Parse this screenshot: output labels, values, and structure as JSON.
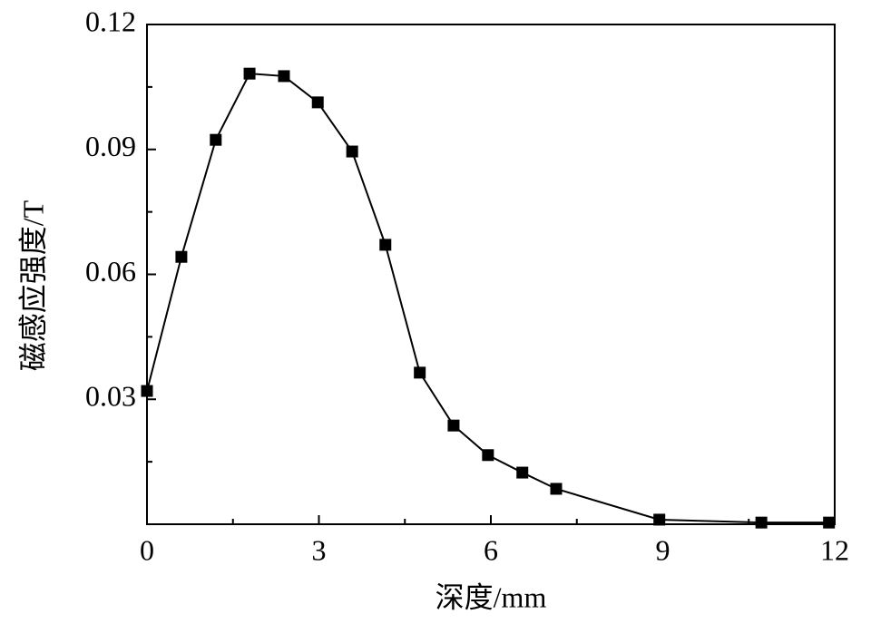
{
  "chart_data": {
    "type": "line",
    "x_label": "深度/mm",
    "y_label": "磁感应强度/T",
    "x": [
      0,
      0.6,
      1.2,
      1.79,
      2.39,
      2.98,
      3.58,
      4.16,
      4.76,
      5.35,
      5.95,
      6.55,
      7.14,
      8.94,
      10.72,
      11.9
    ],
    "series": [
      {
        "name": null,
        "color": "#000000",
        "values": [
          0.032,
          0.0642,
          0.0923,
          0.1082,
          0.1076,
          0.1013,
          0.0895,
          0.0671,
          0.0364,
          0.0237,
          0.0166,
          0.0124,
          0.0085,
          0.0011,
          0.0004,
          0.0004
        ]
      }
    ],
    "xlim": [
      0,
      12
    ],
    "xticks": [
      0,
      3,
      6,
      9,
      12
    ],
    "xminor_ticks": [
      1.5,
      4.5,
      7.5,
      10.5
    ],
    "ylim": [
      0,
      0.12
    ],
    "yticks": [
      0.03,
      0.06,
      0.09,
      0.12
    ],
    "yminor_ticks": [
      0.015,
      0.045,
      0.075,
      0.105
    ],
    "grid": false,
    "marker": "square"
  }
}
